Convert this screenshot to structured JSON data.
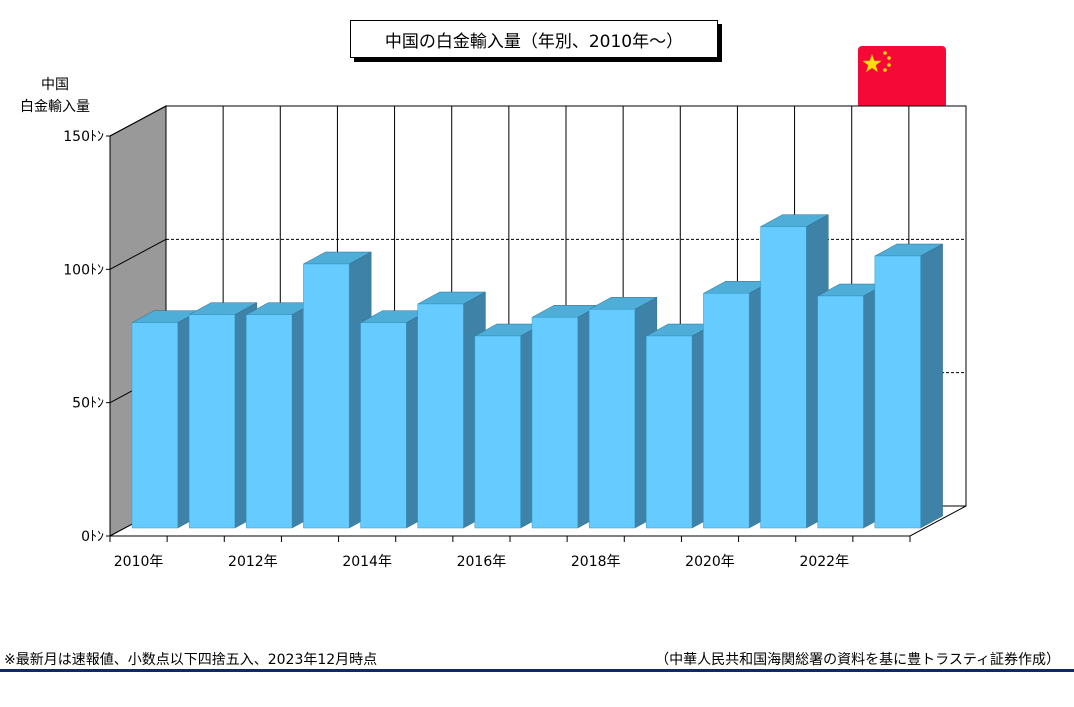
{
  "colors": {
    "bar_front": "#66ccff",
    "bar_side": "#3e82a8",
    "bar_top": "#4eaed8",
    "back_wall": "#ffffff",
    "side_wall": "#999999",
    "flag_red": "#f50a37",
    "flag_star": "#ffde00",
    "footer_rule": "#0d2b5e"
  },
  "icons": {
    "flag": "china-flag-icon"
  },
  "chart_data": {
    "type": "bar",
    "style": "3d",
    "title": "中国の白金輸入量（年別、2010年～）",
    "ylabel_lines": [
      "中国",
      "白金輸入量"
    ],
    "ylim": [
      0,
      150
    ],
    "yticks": [
      0,
      50,
      100,
      150
    ],
    "ytick_labels": [
      "0ﾄﾝ",
      "50ﾄﾝ",
      "100ﾄﾝ",
      "150ﾄﾝ"
    ],
    "grid": "dashed gridlines at 50, 100 and 150 on the back wall",
    "legend": "none",
    "categories": [
      "2010年",
      "2011年",
      "2012年",
      "2013年",
      "2014年",
      "2015年",
      "2016年",
      "2017年",
      "2018年",
      "2019年",
      "2020年",
      "2021年",
      "2022年",
      "2023年"
    ],
    "xtick_labels": [
      "2010年",
      "",
      "2012年",
      "",
      "2014年",
      "",
      "2016年",
      "",
      "2018年",
      "",
      "2020年",
      "",
      "2022年",
      ""
    ],
    "values": [
      77,
      80,
      80,
      99,
      77,
      84,
      72,
      79,
      82,
      72,
      88,
      113,
      87,
      102
    ]
  },
  "footnote": "※最新月は速報値、小数点以下四捨五入、2023年12月時点",
  "source": "（中華人民共和国海関総署の資料を基に豊トラスティ証券作成）"
}
